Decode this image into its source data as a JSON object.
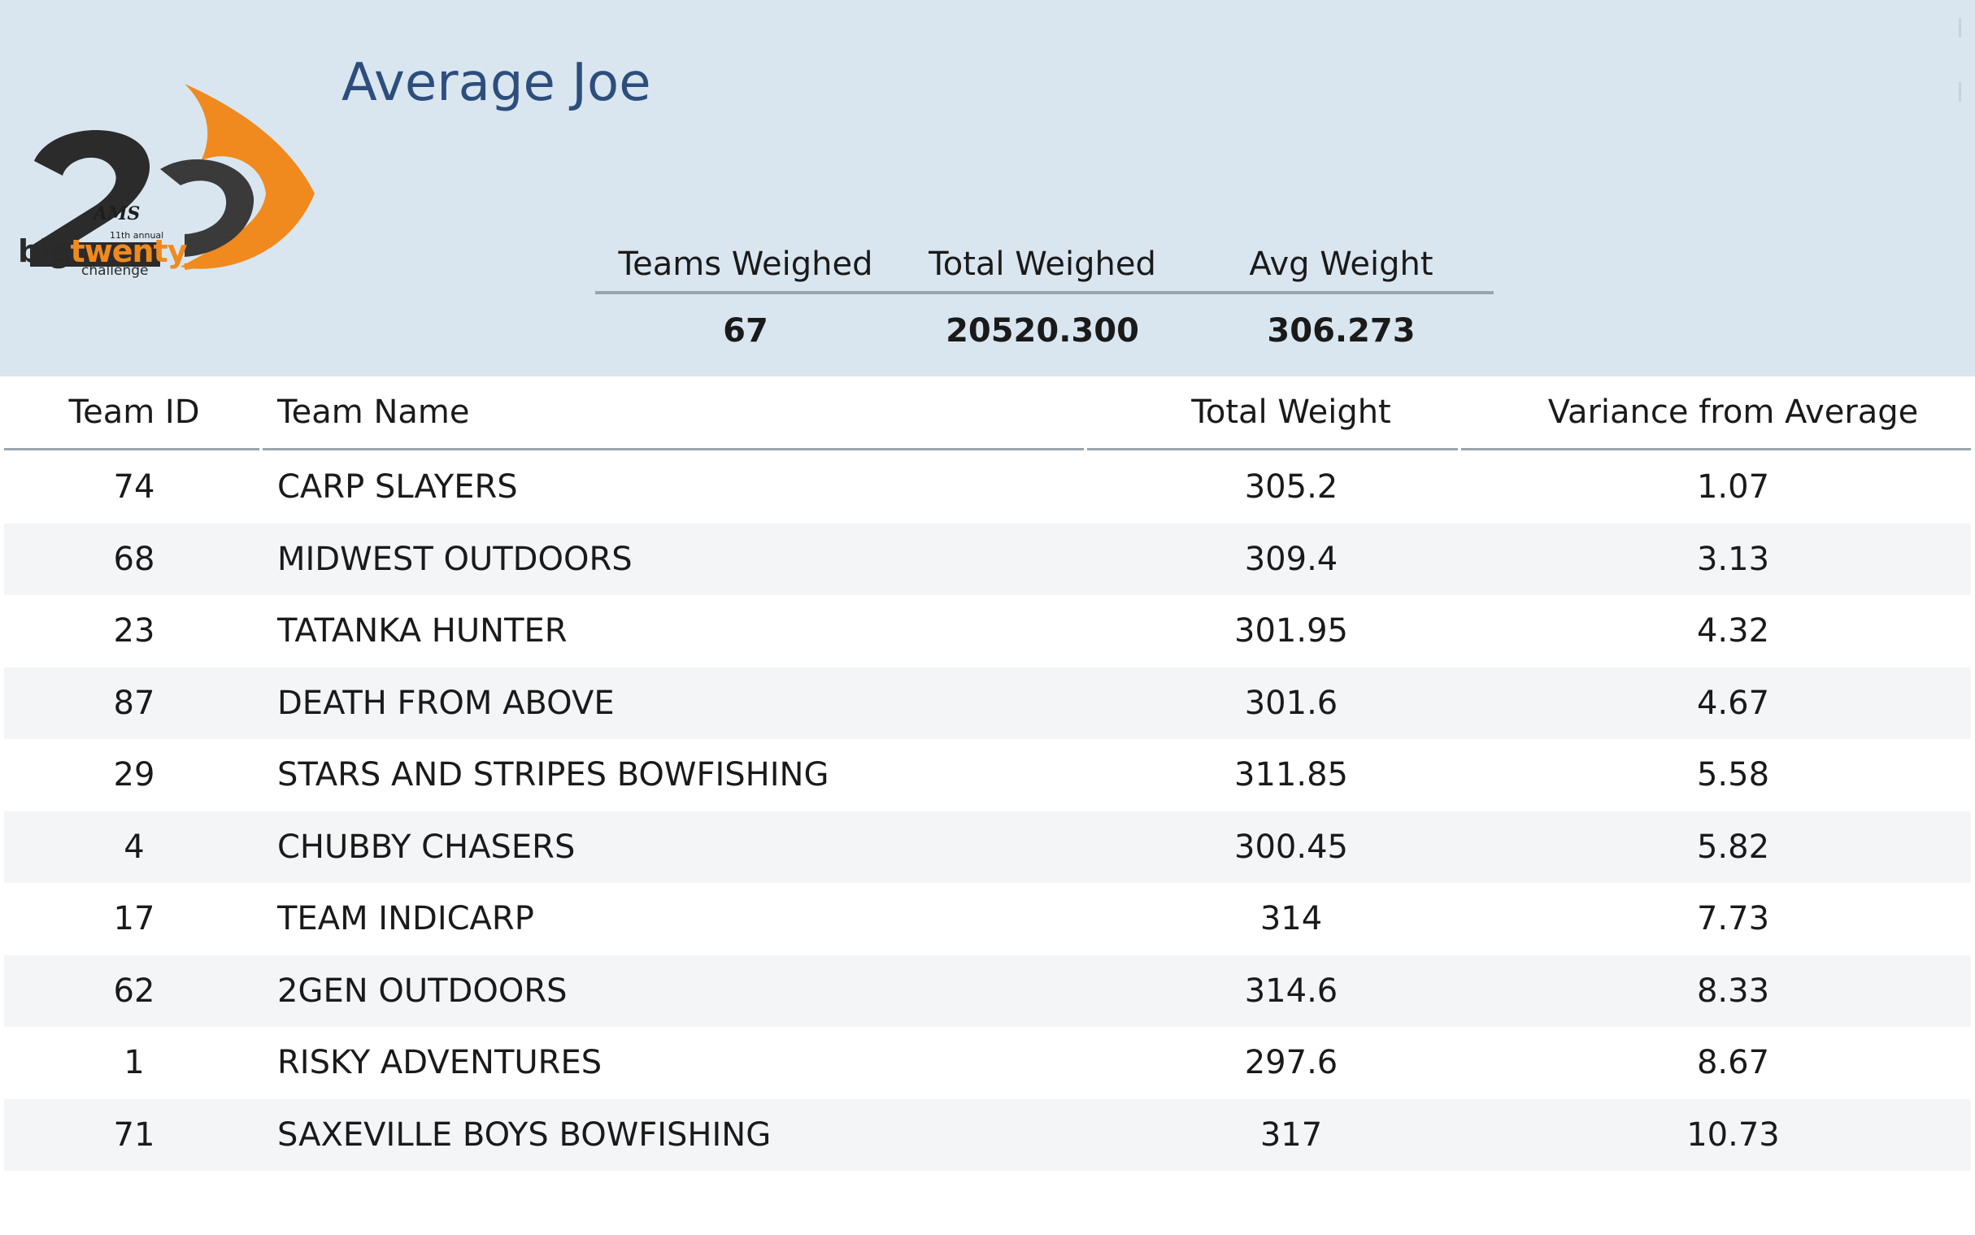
{
  "header": {
    "title": "Average Joe",
    "background_color": "#d9e6f0",
    "title_color": "#2d4e7c"
  },
  "logo": {
    "brand": "AMS",
    "edition": "11th annual",
    "word_big": "big",
    "word_twenty": "twenty",
    "word_challenge": "challenge",
    "number": "20",
    "accent_color": "#f08a1e"
  },
  "summary": {
    "headers": [
      "Teams Weighed",
      "Total Weighed",
      "Avg Weight"
    ],
    "values": [
      "67",
      "20520.300",
      "306.273"
    ]
  },
  "table": {
    "columns": [
      "Team ID",
      "Team Name",
      "Total Weight",
      "Variance from Average"
    ],
    "rows": [
      {
        "id": "74",
        "name": "CARP SLAYERS",
        "weight": "305.2",
        "variance": "1.07"
      },
      {
        "id": "68",
        "name": "MIDWEST OUTDOORS",
        "weight": "309.4",
        "variance": "3.13"
      },
      {
        "id": "23",
        "name": "TATANKA HUNTER",
        "weight": "301.95",
        "variance": "4.32"
      },
      {
        "id": "87",
        "name": "DEATH FROM ABOVE",
        "weight": "301.6",
        "variance": "4.67"
      },
      {
        "id": "29",
        "name": "STARS AND STRIPES BOWFISHING",
        "weight": "311.85",
        "variance": "5.58"
      },
      {
        "id": "4",
        "name": "CHUBBY CHASERS",
        "weight": "300.45",
        "variance": "5.82"
      },
      {
        "id": "17",
        "name": "TEAM INDICARP",
        "weight": "314",
        "variance": "7.73"
      },
      {
        "id": "62",
        "name": "2GEN OUTDOORS",
        "weight": "314.6",
        "variance": "8.33"
      },
      {
        "id": "1",
        "name": "RISKY ADVENTURES",
        "weight": "297.6",
        "variance": "8.67"
      },
      {
        "id": "71",
        "name": "SAXEVILLE BOYS BOWFISHING",
        "weight": "317",
        "variance": "10.73"
      }
    ],
    "stripe_color": "#f3f5f7",
    "rule_color": "#9aa5ad"
  }
}
